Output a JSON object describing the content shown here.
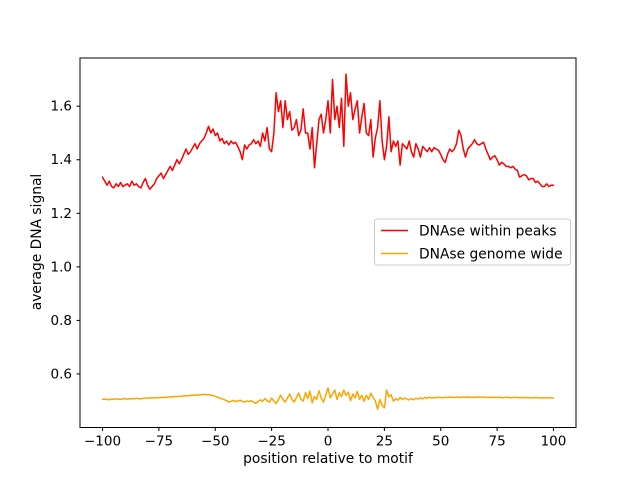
{
  "figure": {
    "background": "#ffffff"
  },
  "chart_data": {
    "type": "line",
    "title": "",
    "xlabel": "position relative to motif",
    "ylabel": "average DNA signal",
    "xlim": [
      -110,
      110
    ],
    "ylim": [
      0.4,
      1.78
    ],
    "grid": false,
    "legend": {
      "position": "right-center",
      "border_color": "#cccccc",
      "background": "#ffffff"
    },
    "xtick_values": [
      -100,
      -75,
      -50,
      -25,
      0,
      25,
      50,
      75,
      100
    ],
    "xtick_labels": [
      "−100",
      "−75",
      "−50",
      "−25",
      "0",
      "25",
      "50",
      "75",
      "100"
    ],
    "ytick_values": [
      0.6,
      0.8,
      1.0,
      1.2,
      1.4,
      1.6
    ],
    "ytick_labels": [
      "0.6",
      "0.8",
      "1.0",
      "1.2",
      "1.4",
      "1.6"
    ],
    "x": [
      -100,
      -99,
      -98,
      -97,
      -96,
      -95,
      -94,
      -93,
      -92,
      -91,
      -90,
      -89,
      -88,
      -87,
      -86,
      -85,
      -84,
      -83,
      -82,
      -81,
      -80,
      -79,
      -78,
      -77,
      -76,
      -75,
      -74,
      -73,
      -72,
      -71,
      -70,
      -69,
      -68,
      -67,
      -66,
      -65,
      -64,
      -63,
      -62,
      -61,
      -60,
      -59,
      -58,
      -57,
      -56,
      -55,
      -54,
      -53,
      -52,
      -51,
      -50,
      -49,
      -48,
      -47,
      -46,
      -45,
      -44,
      -43,
      -42,
      -41,
      -40,
      -39,
      -38,
      -37,
      -36,
      -35,
      -34,
      -33,
      -32,
      -31,
      -30,
      -29,
      -28,
      -27,
      -26,
      -25,
      -24,
      -23,
      -22,
      -21,
      -20,
      -19,
      -18,
      -17,
      -16,
      -15,
      -14,
      -13,
      -12,
      -11,
      -10,
      -9,
      -8,
      -7,
      -6,
      -5,
      -4,
      -3,
      -2,
      -1,
      0,
      1,
      2,
      3,
      4,
      5,
      6,
      7,
      8,
      9,
      10,
      11,
      12,
      13,
      14,
      15,
      16,
      17,
      18,
      19,
      20,
      21,
      22,
      23,
      24,
      25,
      26,
      27,
      28,
      29,
      30,
      31,
      32,
      33,
      34,
      35,
      36,
      37,
      38,
      39,
      40,
      41,
      42,
      43,
      44,
      45,
      46,
      47,
      48,
      49,
      50,
      51,
      52,
      53,
      54,
      55,
      56,
      57,
      58,
      59,
      60,
      61,
      62,
      63,
      64,
      65,
      66,
      67,
      68,
      69,
      70,
      71,
      72,
      73,
      74,
      75,
      76,
      77,
      78,
      79,
      80,
      81,
      82,
      83,
      84,
      85,
      86,
      87,
      88,
      89,
      90,
      91,
      92,
      93,
      94,
      95,
      96,
      97,
      98,
      99,
      100
    ],
    "series": [
      {
        "name": "DNAse within peaks",
        "color": "#ff0000",
        "values": [
          1.335,
          1.32,
          1.305,
          1.32,
          1.3,
          1.295,
          1.31,
          1.3,
          1.315,
          1.3,
          1.305,
          1.31,
          1.3,
          1.32,
          1.305,
          1.31,
          1.3,
          1.295,
          1.315,
          1.33,
          1.305,
          1.29,
          1.3,
          1.31,
          1.33,
          1.34,
          1.35,
          1.33,
          1.345,
          1.36,
          1.375,
          1.36,
          1.38,
          1.4,
          1.385,
          1.4,
          1.42,
          1.44,
          1.42,
          1.43,
          1.445,
          1.46,
          1.44,
          1.46,
          1.47,
          1.48,
          1.5,
          1.525,
          1.5,
          1.515,
          1.49,
          1.5,
          1.47,
          1.48,
          1.46,
          1.47,
          1.455,
          1.47,
          1.46,
          1.465,
          1.45,
          1.43,
          1.4,
          1.455,
          1.44,
          1.455,
          1.46,
          1.475,
          1.46,
          1.47,
          1.45,
          1.5,
          1.47,
          1.52,
          1.44,
          1.43,
          1.5,
          1.65,
          1.58,
          1.62,
          1.52,
          1.62,
          1.55,
          1.58,
          1.51,
          1.52,
          1.55,
          1.49,
          1.51,
          1.59,
          1.5,
          1.5,
          1.44,
          1.52,
          1.37,
          1.46,
          1.55,
          1.57,
          1.5,
          1.55,
          1.62,
          1.5,
          1.7,
          1.55,
          1.6,
          1.52,
          1.63,
          1.45,
          1.72,
          1.6,
          1.65,
          1.55,
          1.59,
          1.62,
          1.5,
          1.56,
          1.61,
          1.5,
          1.49,
          1.55,
          1.41,
          1.48,
          1.52,
          1.62,
          1.47,
          1.4,
          1.45,
          1.56,
          1.43,
          1.47,
          1.45,
          1.47,
          1.38,
          1.46,
          1.45,
          1.44,
          1.47,
          1.43,
          1.41,
          1.46,
          1.44,
          1.41,
          1.45,
          1.44,
          1.43,
          1.445,
          1.43,
          1.445,
          1.44,
          1.435,
          1.42,
          1.4,
          1.39,
          1.42,
          1.44,
          1.43,
          1.44,
          1.46,
          1.51,
          1.49,
          1.44,
          1.41,
          1.44,
          1.45,
          1.46,
          1.475,
          1.46,
          1.455,
          1.46,
          1.465,
          1.44,
          1.42,
          1.4,
          1.41,
          1.415,
          1.4,
          1.38,
          1.39,
          1.385,
          1.375,
          1.375,
          1.37,
          1.375,
          1.365,
          1.36,
          1.335,
          1.34,
          1.345,
          1.34,
          1.325,
          1.33,
          1.33,
          1.315,
          1.32,
          1.31,
          1.3,
          1.3,
          1.31,
          1.3,
          1.305,
          1.305
        ]
      },
      {
        "name": "DNAse genome wide",
        "color": "#ffa500",
        "values": [
          0.505,
          0.506,
          0.505,
          0.504,
          0.506,
          0.505,
          0.507,
          0.506,
          0.505,
          0.507,
          0.508,
          0.506,
          0.507,
          0.508,
          0.507,
          0.509,
          0.508,
          0.507,
          0.509,
          0.51,
          0.509,
          0.51,
          0.511,
          0.51,
          0.512,
          0.511,
          0.512,
          0.513,
          0.512,
          0.514,
          0.515,
          0.514,
          0.516,
          0.515,
          0.517,
          0.516,
          0.518,
          0.519,
          0.518,
          0.52,
          0.521,
          0.52,
          0.522,
          0.521,
          0.523,
          0.524,
          0.522,
          0.523,
          0.521,
          0.519,
          0.516,
          0.513,
          0.51,
          0.507,
          0.504,
          0.5,
          0.495,
          0.498,
          0.501,
          0.497,
          0.499,
          0.502,
          0.498,
          0.495,
          0.499,
          0.497,
          0.5,
          0.494,
          0.49,
          0.497,
          0.503,
          0.498,
          0.508,
          0.5,
          0.495,
          0.51,
          0.499,
          0.489,
          0.504,
          0.521,
          0.505,
          0.495,
          0.51,
          0.525,
          0.505,
          0.495,
          0.512,
          0.529,
          0.505,
          0.499,
          0.53,
          0.508,
          0.536,
          0.492,
          0.516,
          0.505,
          0.537,
          0.51,
          0.495,
          0.52,
          0.548,
          0.51,
          0.525,
          0.54,
          0.505,
          0.53,
          0.515,
          0.54,
          0.52,
          0.532,
          0.5,
          0.525,
          0.51,
          0.535,
          0.505,
          0.52,
          0.498,
          0.52,
          0.505,
          0.528,
          0.512,
          0.5,
          0.468,
          0.505,
          0.483,
          0.474,
          0.54,
          0.515,
          0.522,
          0.498,
          0.508,
          0.502,
          0.512,
          0.505,
          0.51,
          0.506,
          0.503,
          0.508,
          0.504,
          0.509,
          0.506,
          0.511,
          0.507,
          0.512,
          0.509,
          0.513,
          0.51,
          0.512,
          0.511,
          0.513,
          0.512,
          0.511,
          0.513,
          0.512,
          0.514,
          0.513,
          0.512,
          0.514,
          0.513,
          0.512,
          0.514,
          0.513,
          0.514,
          0.513,
          0.512,
          0.514,
          0.513,
          0.514,
          0.513,
          0.514,
          0.513,
          0.512,
          0.513,
          0.512,
          0.513,
          0.512,
          0.513,
          0.512,
          0.511,
          0.513,
          0.512,
          0.511,
          0.512,
          0.513,
          0.512,
          0.511,
          0.512,
          0.511,
          0.512,
          0.511,
          0.51,
          0.511,
          0.512,
          0.511,
          0.51,
          0.511,
          0.51,
          0.511,
          0.51,
          0.511,
          0.51
        ]
      }
    ]
  }
}
